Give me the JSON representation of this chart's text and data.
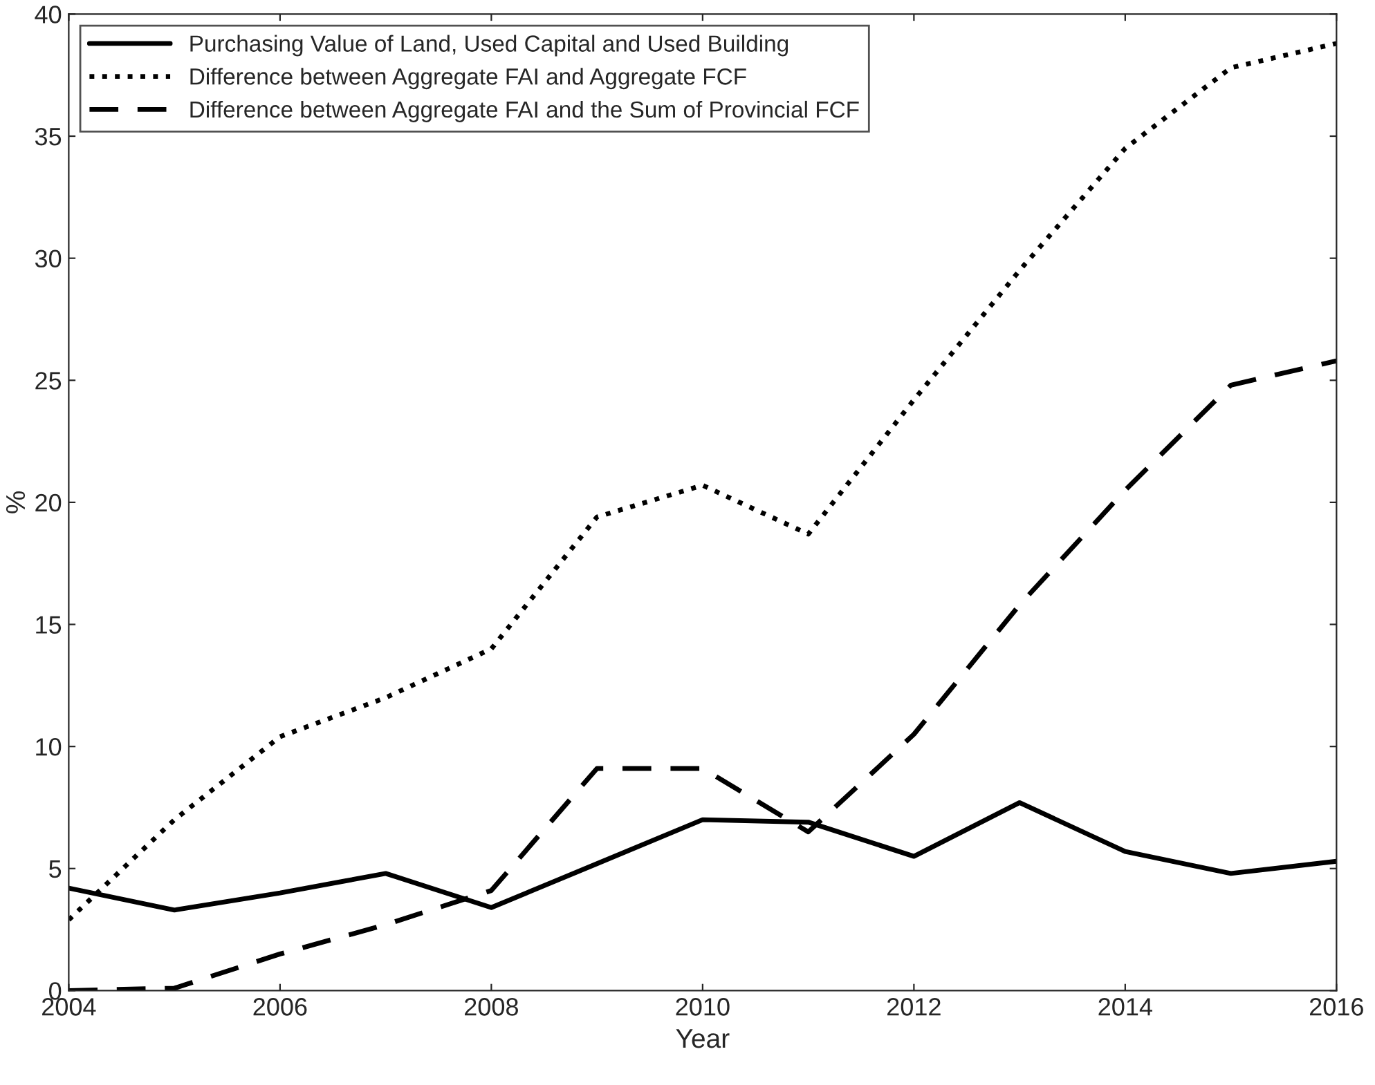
{
  "chart_data": {
    "type": "line",
    "xlabel": "Year",
    "ylabel": "%",
    "x": [
      2004,
      2005,
      2006,
      2007,
      2008,
      2009,
      2010,
      2011,
      2012,
      2013,
      2014,
      2015,
      2016
    ],
    "series": [
      {
        "name": "Purchasing Value of Land, Used Capital and Used Building",
        "color": "#000000",
        "line_style": "solid",
        "values": [
          4.2,
          3.3,
          4.0,
          4.8,
          3.4,
          5.2,
          7.0,
          6.9,
          5.5,
          7.7,
          5.7,
          4.8,
          5.3
        ]
      },
      {
        "name": "Difference between Aggregate FAI and Aggregate FCF",
        "color": "#000000",
        "line_style": "dotted",
        "values": [
          2.9,
          7.0,
          10.4,
          12.0,
          14.0,
          19.4,
          20.7,
          18.7,
          24.2,
          29.5,
          34.5,
          37.8,
          38.8
        ]
      },
      {
        "name": "Difference between Aggregate FAI and the Sum of Provincial FCF",
        "color": "#000000",
        "line_style": "dashed",
        "values": [
          0.0,
          0.1,
          1.5,
          2.7,
          4.1,
          9.1,
          9.1,
          6.5,
          10.5,
          15.8,
          20.5,
          24.8,
          25.8
        ]
      }
    ],
    "xlim": [
      2004,
      2016
    ],
    "xticks": [
      2004,
      2006,
      2008,
      2010,
      2012,
      2014,
      2016
    ],
    "ylim": [
      0,
      40
    ],
    "yticks": [
      0,
      5,
      10,
      15,
      20,
      25,
      30,
      35,
      40
    ],
    "grid": false,
    "legend": "top left",
    "marker": "none"
  }
}
